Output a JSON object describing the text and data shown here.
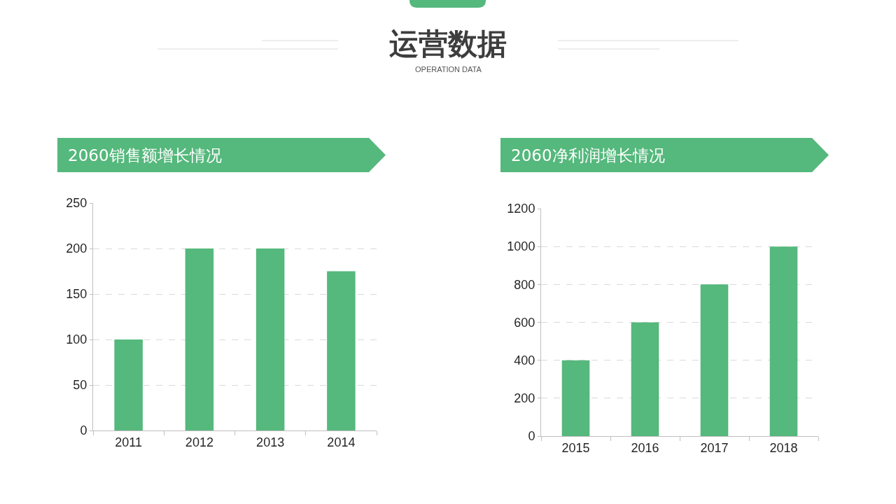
{
  "chart_data": [
    {
      "type": "other",
      "title": "运营数据",
      "subtitle": "OPERATION DATA"
    },
    {
      "type": "bar",
      "title": "2060销售额增长情况",
      "categories": [
        "2011",
        "2012",
        "2013",
        "2014"
      ],
      "values": [
        100,
        200,
        200,
        175
      ],
      "color": "#55b87c",
      "ylim": [
        0,
        250
      ],
      "yticks": [
        0,
        50,
        100,
        150,
        200,
        250
      ],
      "grid": "y"
    },
    {
      "type": "bar",
      "title": "2060净利润增长情况",
      "categories": [
        "2015",
        "2016",
        "2017",
        "2018"
      ],
      "values": [
        400,
        600,
        800,
        1000
      ],
      "color": "#55b87c",
      "ylim": [
        0,
        1200
      ],
      "yticks": [
        0,
        200,
        400,
        600,
        800,
        1000,
        1200
      ],
      "grid": "y"
    }
  ]
}
